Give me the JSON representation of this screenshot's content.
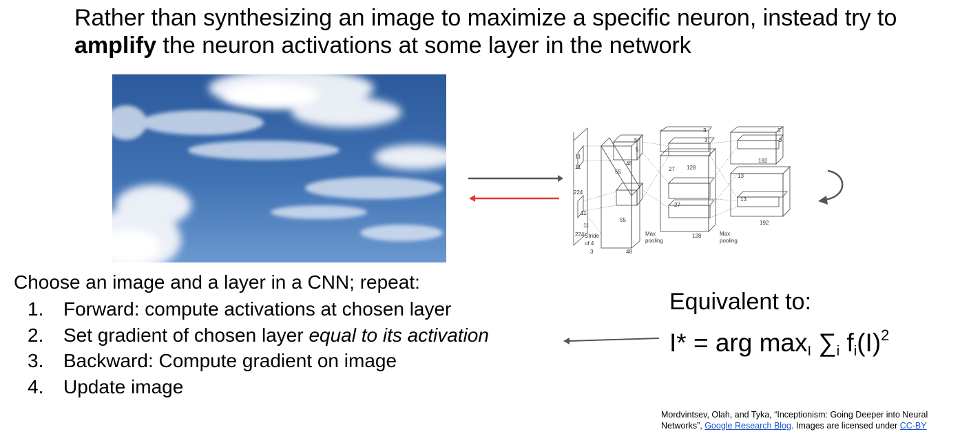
{
  "slide": {
    "title_prefix": "Rather than synthesizing an image to maximize a specific neuron, instead try to ",
    "title_bold": "amplify",
    "title_suffix": " the neuron activations at some layer in the network"
  },
  "network_labels": {
    "in_11a": "11",
    "in_11b": "11",
    "in_224": "224",
    "in_224b": "224",
    "in_11c": "11",
    "in_11d": "11",
    "stride": "Stride",
    "of4": "of 4",
    "in_3": "3",
    "c1_5a": "5",
    "c1_5b": "5",
    "c1_48a": "48",
    "c1_55": "55",
    "c1_55b": "55",
    "c1_48b": "48",
    "c2_3a": "3",
    "c2_3b": "3",
    "c2_27": "27",
    "c2_128": "128",
    "c2_27b": "27",
    "c2_128b": "128",
    "c3_3a": "3",
    "c3_3b": "3",
    "c3_192": "192",
    "c3_13": "13",
    "c3_13b": "13",
    "c3_192b": "192",
    "max_pool_1a": "Max",
    "max_pool_1b": "pooling",
    "max_pool_2a": "Max",
    "max_pool_2b": "pooling"
  },
  "steps_heading": "Choose an image and a layer in a CNN; repeat:",
  "steps": [
    {
      "num": "1.",
      "text": "Forward: compute activations at chosen layer",
      "italic": ""
    },
    {
      "num": "2.",
      "text": "Set gradient of chosen layer ",
      "italic": "equal to its activation"
    },
    {
      "num": "3.",
      "text": "Backward: Compute gradient on image",
      "italic": ""
    },
    {
      "num": "4.",
      "text": "Update image",
      "italic": ""
    }
  ],
  "equivalent": {
    "label": "Equivalent to:",
    "lhs": "I* = arg max",
    "sub_I": "I",
    "sum": " ∑",
    "sub_i": "i",
    "f": " f",
    "sub_i2": "i",
    "arg": "(I)",
    "sup": "2"
  },
  "citation": {
    "text1": "Mordvintsev, Olah, and Tyka, “Inceptionism: Going Deeper into Neural Networks”, ",
    "link1": "Google Research Blog",
    "text2": ". Images are licensed under ",
    "link2": "CC-BY"
  },
  "colors": {
    "forward_arrow": "#555555",
    "backward_arrow": "#e0392b",
    "link": "#1a52c6",
    "sky_top": "#2f5e9e",
    "sky_bottom": "#5a8cc8"
  }
}
